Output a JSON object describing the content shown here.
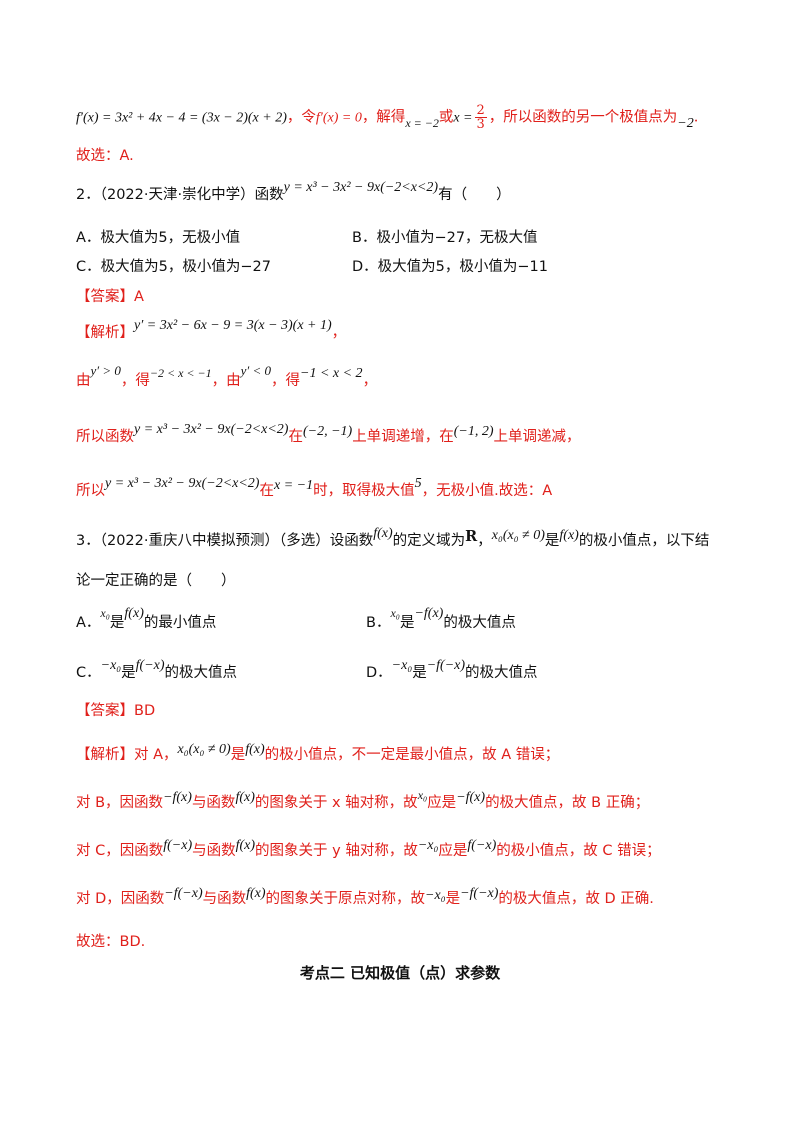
{
  "intro": {
    "deriv": "f′(x) = 3x² + 4x − 4 = (3x − 2)(x + 2)",
    "t1": "，令",
    "deriv_zero": "f′(x) = 0",
    "t2": "，解得",
    "root1": "x = −2",
    "t3": "或",
    "root2_lhs": "x =",
    "root2_num": "2",
    "root2_den": "3",
    "t4": "，所以函数的另一个极值点为",
    "other": "−2",
    "t5": "."
  },
  "intro_select": "故选：A.",
  "q2": {
    "head": "2．（2022·天津·崇化中学）函数",
    "func": "y = x³ − 3x² − 9x(−2<x<2)",
    "tail": "有（　　）",
    "options": {
      "A": "A．极大值为5，无极小值",
      "B": "B．极小值为−27，无极大值",
      "C": "C．极大值为5，极小值为−27",
      "D": "D．极大值为5，极小值为−11"
    },
    "answer": "【答案】A",
    "analysis_label": "【解析】",
    "analysis_expr": "y′ = 3x² − 6x − 9 = 3(x − 3)(x + 1)",
    "analysis_tail": "，",
    "l2": {
      "a": "由",
      "c1": "y′ > 0",
      "b": "，得",
      "r1": "−2 < x < −1",
      "c": "，由",
      "c2": "y′ < 0",
      "d": "，得",
      "r2": "−1 < x < 2",
      "e": "，"
    },
    "l3": {
      "a": "所以函数",
      "func": "y = x³ − 3x² − 9x(−2<x<2)",
      "b": "在",
      "i1": "(−2, −1)",
      "c": "上单调递增，在",
      "i2": "(−1, 2)",
      "d": "上单调递减，"
    },
    "l4": {
      "a": "所以",
      "func": "y = x³ − 3x² − 9x(−2<x<2)",
      "b": "在",
      "x": "x = −1",
      "c": "时，取得极大值",
      "v": "5",
      "d": "，无极小值.故选：A"
    }
  },
  "q3": {
    "head": "3．（2022·重庆八中模拟预测）（多选）设函数",
    "f": "f(x)",
    "mid1": "的定义域为",
    "R": "R",
    "comma": "，",
    "x0": "x₀(x₀ ≠ 0)",
    "mid2": "是",
    "f2": "f(x)",
    "tail": "的极小值点，以下结",
    "line2": "论一定正确的是（　　）",
    "optA": {
      "label": "A．",
      "m1": "x₀",
      "t1": "是",
      "m2": "f(x)",
      "t2": "的最小值点"
    },
    "optB": {
      "label": "B．",
      "m1": "x₀",
      "t1": "是",
      "m2": "−f(x)",
      "t2": "的极大值点"
    },
    "optC": {
      "label": "C．",
      "m1": "−x₀",
      "t1": "是",
      "m2": "f(−x)",
      "t2": "的极大值点"
    },
    "optD": {
      "label": "D．",
      "m1": "−x₀",
      "t1": "是",
      "m2": "−f(−x)",
      "t2": "的极大值点"
    },
    "answer": "【答案】BD",
    "a1": {
      "a": "【解析】对 A，",
      "m1": "x₀(x₀ ≠ 0)",
      "b": "是",
      "m2": "f(x)",
      "c": "的极小值点，不一定是最小值点，故 A 错误；"
    },
    "a2": {
      "a": "对 B，因函数",
      "m1": "−f(x)",
      "b": "与函数",
      "m2": "f(x)",
      "c": "的图象关于 x 轴对称，故",
      "m3": "x₀",
      "d": "应是",
      "m4": "−f(x)",
      "e": "的极大值点，故 B 正确；"
    },
    "a3": {
      "a": "对 C，因函数",
      "m1": "f(−x)",
      "b": "与函数",
      "m2": "f(x)",
      "c": "的图象关于 y 轴对称，故",
      "m3": "−x₀",
      "d": "应是",
      "m4": "f(−x)",
      "e": "的极小值点，故 C 错误；"
    },
    "a4": {
      "a": "对 D，因函数",
      "m1": "−f(−x)",
      "b": "与函数",
      "m2": "f(x)",
      "c": "的图象关于原点对称，故",
      "m3": "−x₀",
      "d": "是",
      "m4": "−f(−x)",
      "e": "的极大值点，故 D 正确."
    },
    "select": "故选：BD."
  },
  "section_heading": "考点二  已知极值（点）求参数"
}
